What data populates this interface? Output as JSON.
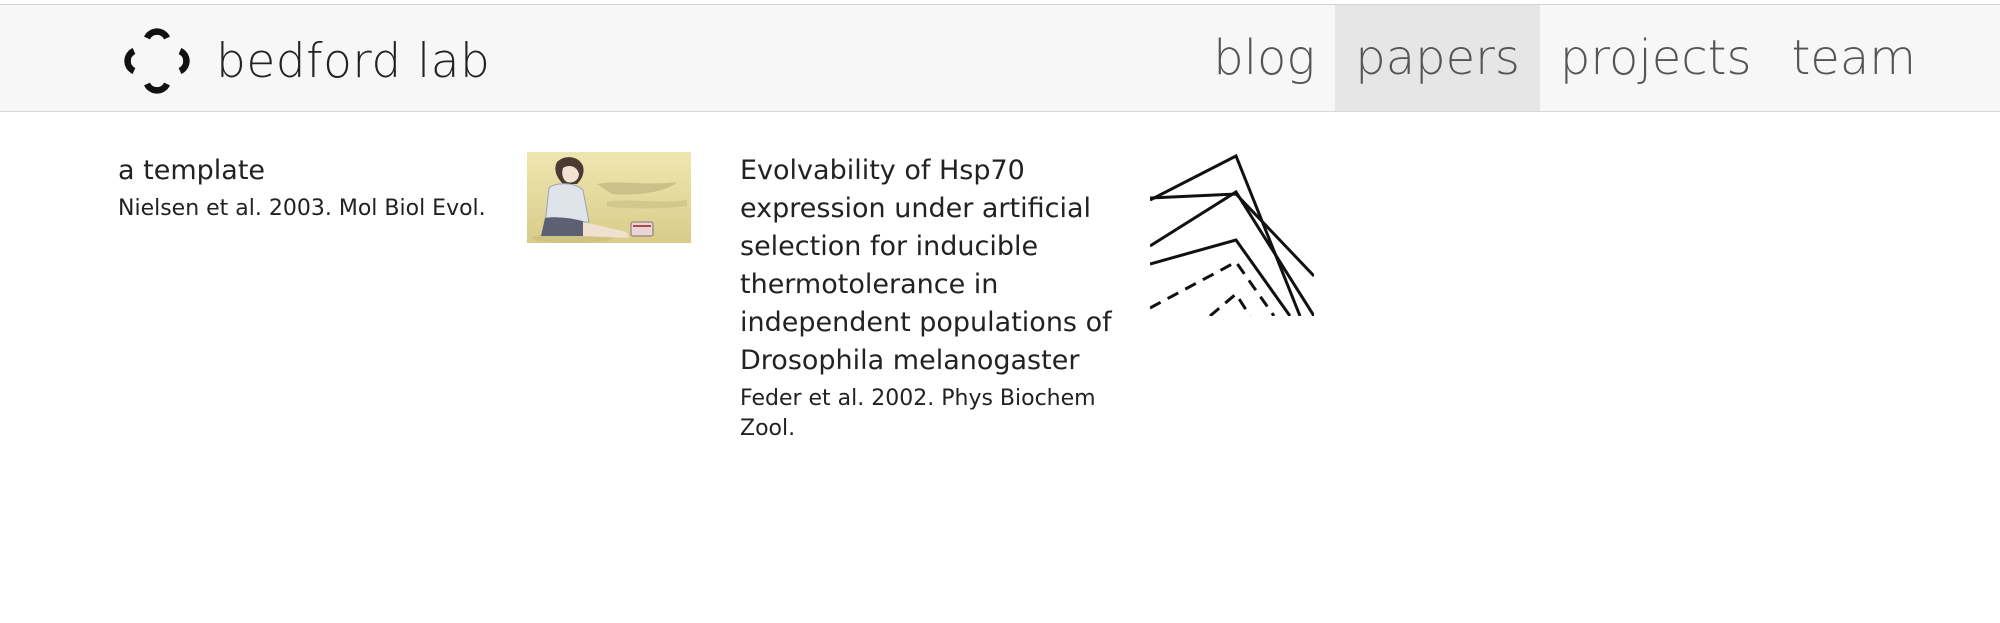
{
  "brand": {
    "name": "bedford lab",
    "logo_icon": "clover-ring-icon"
  },
  "nav": {
    "items": [
      {
        "label": "blog",
        "active": false
      },
      {
        "label": "papers",
        "active": true
      },
      {
        "label": "projects",
        "active": false
      },
      {
        "label": "team",
        "active": false
      }
    ]
  },
  "papers": [
    {
      "title": "a template",
      "citation": "Nielsen et al. 2003. Mol Biol Evol.",
      "thumbnail": "anime-girl-sitting-on-sand-thumbnail"
    },
    {
      "title": "Evolvability of Hsp70 expression under artificial selection for inducible thermotolerance in independent populations of Drosophila melanogaster",
      "citation": "Feder et al. 2002. Phys Biochem Zool.",
      "thumbnail": "line-graph-thumbnail"
    }
  ],
  "colors": {
    "navbar_bg": "#f7f7f7",
    "nav_active_bg": "#e6e6e6",
    "text": "#222222",
    "nav_text": "#555555"
  }
}
